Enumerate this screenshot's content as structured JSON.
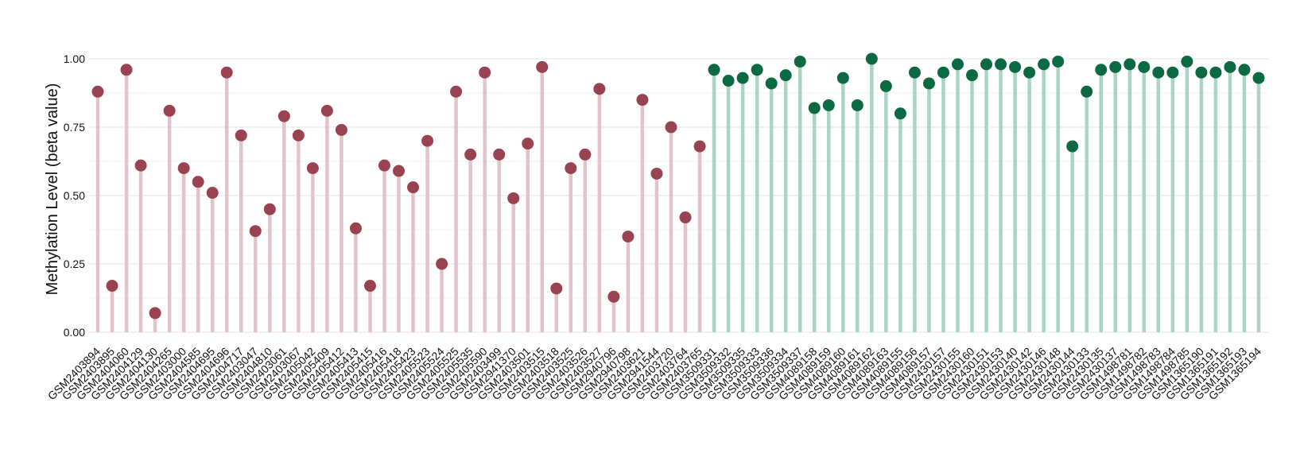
{
  "chart_data": {
    "type": "lollipop",
    "ylabel": "Methylation Level (beta value)",
    "ylim": [
      0,
      1.0
    ],
    "yticks": [
      "0.00",
      "0.25",
      "0.50",
      "0.75",
      "1.00"
    ],
    "grid": true,
    "group_colors": {
      "group_1": {
        "point": "#9a4350",
        "stem": "#e3c3c8"
      },
      "group_2": {
        "point": "#0b6a42",
        "stem": "#acd3c3"
      }
    },
    "points": [
      {
        "x": "GSM2403894",
        "y": 0.88,
        "group": "group_1"
      },
      {
        "x": "GSM2403895",
        "y": 0.17,
        "group": "group_1"
      },
      {
        "x": "GSM2404060",
        "y": 0.96,
        "group": "group_1"
      },
      {
        "x": "GSM2404129",
        "y": 0.61,
        "group": "group_1"
      },
      {
        "x": "GSM2404130",
        "y": 0.07,
        "group": "group_1"
      },
      {
        "x": "GSM2404265",
        "y": 0.81,
        "group": "group_1"
      },
      {
        "x": "GSM2403000",
        "y": 0.6,
        "group": "group_1"
      },
      {
        "x": "GSM2404585",
        "y": 0.55,
        "group": "group_1"
      },
      {
        "x": "GSM2404695",
        "y": 0.51,
        "group": "group_1"
      },
      {
        "x": "GSM2404696",
        "y": 0.95,
        "group": "group_1"
      },
      {
        "x": "GSM2404717",
        "y": 0.72,
        "group": "group_1"
      },
      {
        "x": "GSM2403047",
        "y": 0.37,
        "group": "group_1"
      },
      {
        "x": "GSM2404810",
        "y": 0.45,
        "group": "group_1"
      },
      {
        "x": "GSM2403061",
        "y": 0.79,
        "group": "group_1"
      },
      {
        "x": "GSM2403067",
        "y": 0.72,
        "group": "group_1"
      },
      {
        "x": "GSM2405042",
        "y": 0.6,
        "group": "group_1"
      },
      {
        "x": "GSM2405409",
        "y": 0.81,
        "group": "group_1"
      },
      {
        "x": "GSM2405412",
        "y": 0.74,
        "group": "group_1"
      },
      {
        "x": "GSM2405413",
        "y": 0.38,
        "group": "group_1"
      },
      {
        "x": "GSM2405415",
        "y": 0.17,
        "group": "group_1"
      },
      {
        "x": "GSM2405416",
        "y": 0.61,
        "group": "group_1"
      },
      {
        "x": "GSM2405418",
        "y": 0.59,
        "group": "group_1"
      },
      {
        "x": "GSM2405423",
        "y": 0.53,
        "group": "group_1"
      },
      {
        "x": "GSM2405523",
        "y": 0.7,
        "group": "group_1"
      },
      {
        "x": "GSM2405524",
        "y": 0.25,
        "group": "group_1"
      },
      {
        "x": "GSM2405525",
        "y": 0.88,
        "group": "group_1"
      },
      {
        "x": "GSM2405535",
        "y": 0.65,
        "group": "group_1"
      },
      {
        "x": "GSM2405590",
        "y": 0.95,
        "group": "group_1"
      },
      {
        "x": "GSM2403499",
        "y": 0.65,
        "group": "group_1"
      },
      {
        "x": "GSM2941370",
        "y": 0.49,
        "group": "group_1"
      },
      {
        "x": "GSM2403501",
        "y": 0.69,
        "group": "group_1"
      },
      {
        "x": "GSM2403515",
        "y": 0.97,
        "group": "group_1"
      },
      {
        "x": "GSM2403518",
        "y": 0.16,
        "group": "group_1"
      },
      {
        "x": "GSM2403525",
        "y": 0.6,
        "group": "group_1"
      },
      {
        "x": "GSM2403526",
        "y": 0.65,
        "group": "group_1"
      },
      {
        "x": "GSM2403527",
        "y": 0.89,
        "group": "group_1"
      },
      {
        "x": "GSM2940796",
        "y": 0.13,
        "group": "group_1"
      },
      {
        "x": "GSM2940798",
        "y": 0.35,
        "group": "group_1"
      },
      {
        "x": "GSM2403621",
        "y": 0.85,
        "group": "group_1"
      },
      {
        "x": "GSM2941544",
        "y": 0.58,
        "group": "group_1"
      },
      {
        "x": "GSM2403720",
        "y": 0.75,
        "group": "group_1"
      },
      {
        "x": "GSM2403764",
        "y": 0.42,
        "group": "group_1"
      },
      {
        "x": "GSM2403765",
        "y": 0.68,
        "group": "group_1"
      },
      {
        "x": "GSM3509331",
        "y": 0.96,
        "group": "group_2"
      },
      {
        "x": "GSM3509332",
        "y": 0.92,
        "group": "group_2"
      },
      {
        "x": "GSM3509335",
        "y": 0.93,
        "group": "group_2"
      },
      {
        "x": "GSM3509333",
        "y": 0.96,
        "group": "group_2"
      },
      {
        "x": "GSM3509336",
        "y": 0.91,
        "group": "group_2"
      },
      {
        "x": "GSM3509334",
        "y": 0.94,
        "group": "group_2"
      },
      {
        "x": "GSM3509337",
        "y": 0.99,
        "group": "group_2"
      },
      {
        "x": "GSM4089158",
        "y": 0.82,
        "group": "group_2"
      },
      {
        "x": "GSM4089159",
        "y": 0.83,
        "group": "group_2"
      },
      {
        "x": "GSM4089160",
        "y": 0.93,
        "group": "group_2"
      },
      {
        "x": "GSM4089161",
        "y": 0.83,
        "group": "group_2"
      },
      {
        "x": "GSM4089162",
        "y": 1.0,
        "group": "group_2"
      },
      {
        "x": "GSM4089163",
        "y": 0.9,
        "group": "group_2"
      },
      {
        "x": "GSM4089155",
        "y": 0.8,
        "group": "group_2"
      },
      {
        "x": "GSM4089156",
        "y": 0.95,
        "group": "group_2"
      },
      {
        "x": "GSM4089157",
        "y": 0.91,
        "group": "group_2"
      },
      {
        "x": "GSM2430157",
        "y": 0.95,
        "group": "group_2"
      },
      {
        "x": "GSM2430155",
        "y": 0.98,
        "group": "group_2"
      },
      {
        "x": "GSM2430160",
        "y": 0.94,
        "group": "group_2"
      },
      {
        "x": "GSM2430151",
        "y": 0.98,
        "group": "group_2"
      },
      {
        "x": "GSM2430153",
        "y": 0.98,
        "group": "group_2"
      },
      {
        "x": "GSM2430140",
        "y": 0.97,
        "group": "group_2"
      },
      {
        "x": "GSM2430142",
        "y": 0.95,
        "group": "group_2"
      },
      {
        "x": "GSM2430146",
        "y": 0.98,
        "group": "group_2"
      },
      {
        "x": "GSM2430148",
        "y": 0.99,
        "group": "group_2"
      },
      {
        "x": "GSM2430144",
        "y": 0.68,
        "group": "group_2"
      },
      {
        "x": "GSM2430133",
        "y": 0.88,
        "group": "group_2"
      },
      {
        "x": "GSM2430135",
        "y": 0.96,
        "group": "group_2"
      },
      {
        "x": "GSM2430137",
        "y": 0.97,
        "group": "group_2"
      },
      {
        "x": "GSM1498781",
        "y": 0.98,
        "group": "group_2"
      },
      {
        "x": "GSM1498782",
        "y": 0.97,
        "group": "group_2"
      },
      {
        "x": "GSM1498783",
        "y": 0.95,
        "group": "group_2"
      },
      {
        "x": "GSM1498784",
        "y": 0.95,
        "group": "group_2"
      },
      {
        "x": "GSM1498785",
        "y": 0.99,
        "group": "group_2"
      },
      {
        "x": "GSM1365190",
        "y": 0.95,
        "group": "group_2"
      },
      {
        "x": "GSM1365191",
        "y": 0.95,
        "group": "group_2"
      },
      {
        "x": "GSM1365192",
        "y": 0.97,
        "group": "group_2"
      },
      {
        "x": "GSM1365193",
        "y": 0.96,
        "group": "group_2"
      },
      {
        "x": "GSM1365194",
        "y": 0.93,
        "group": "group_2"
      }
    ]
  }
}
